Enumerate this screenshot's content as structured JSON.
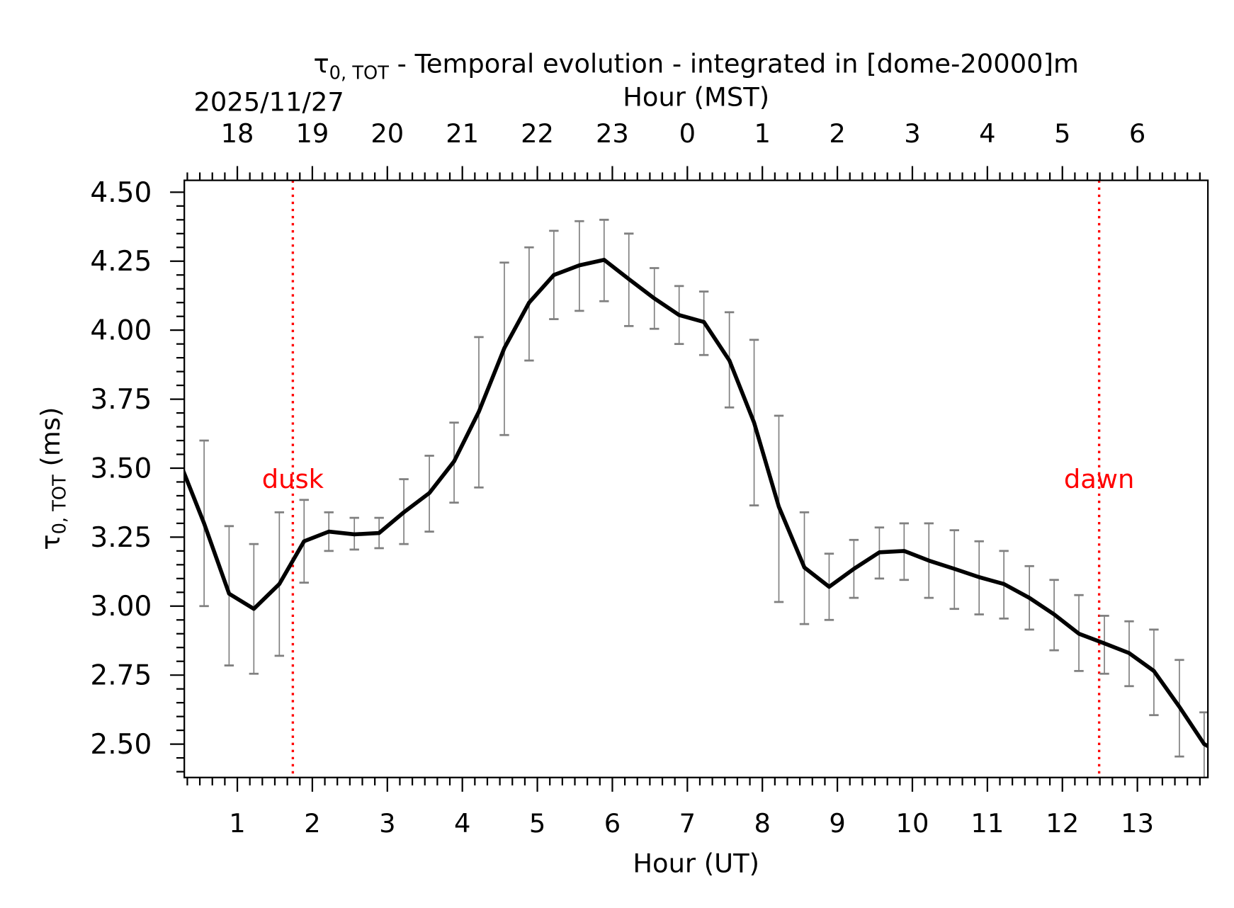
{
  "chart_data": {
    "type": "line",
    "title_symbol": "τ",
    "title_subscript": "0, TOT",
    "title_rest": " - Temporal evolution - integrated in [dome-20000]m",
    "date_label": "2025/11/27",
    "top_xlabel": "Hour (MST)",
    "xlabel": "Hour (UT)",
    "ylabel_symbol": "τ",
    "ylabel_subscript": "0, TOT",
    "ylabel_rest": " (ms)",
    "xlim": [
      0.293,
      13.94
    ],
    "ylim": [
      2.379,
      4.543
    ],
    "x_ticks": [
      1,
      2,
      3,
      4,
      5,
      6,
      7,
      8,
      9,
      10,
      11,
      12,
      13
    ],
    "x_tick_labels": [
      "1",
      "2",
      "3",
      "4",
      "5",
      "6",
      "7",
      "8",
      "9",
      "10",
      "11",
      "12",
      "13"
    ],
    "top_tick_labels": [
      "18",
      "19",
      "20",
      "21",
      "22",
      "23",
      "0",
      "1",
      "2",
      "3",
      "4",
      "5",
      "6"
    ],
    "y_ticks": [
      2.5,
      2.75,
      3.0,
      3.25,
      3.5,
      3.75,
      4.0,
      4.25,
      4.5
    ],
    "y_tick_labels": [
      "2.50",
      "2.75",
      "3.00",
      "3.25",
      "3.50",
      "3.75",
      "4.00",
      "4.25",
      "4.50"
    ],
    "markers": [
      {
        "label": "dusk",
        "x": 1.74,
        "color": "#ff0000"
      },
      {
        "label": "dawn",
        "x": 12.49,
        "color": "#ff0000"
      }
    ],
    "series": [
      {
        "name": "tau0_tot",
        "color": "#000000",
        "errorbar_color": "#808080",
        "x": [
          0.22,
          0.557,
          0.89,
          1.22,
          1.56,
          1.89,
          2.22,
          2.56,
          2.89,
          3.22,
          3.56,
          3.89,
          4.22,
          4.56,
          4.89,
          5.22,
          5.56,
          5.89,
          6.22,
          6.56,
          6.89,
          7.22,
          7.56,
          7.89,
          8.22,
          8.56,
          8.89,
          9.22,
          9.56,
          9.89,
          10.22,
          10.56,
          10.89,
          11.22,
          11.56,
          11.89,
          12.22,
          12.56,
          12.89,
          13.22,
          13.56,
          13.89,
          14.22
        ],
        "y": [
          3.53,
          3.3,
          3.045,
          2.99,
          3.08,
          3.235,
          3.27,
          3.26,
          3.265,
          3.34,
          3.41,
          3.525,
          3.705,
          3.935,
          4.1,
          4.2,
          4.235,
          4.255,
          4.185,
          4.115,
          4.055,
          4.03,
          3.89,
          3.665,
          3.36,
          3.14,
          3.07,
          3.135,
          3.195,
          3.2,
          3.165,
          3.135,
          3.105,
          3.08,
          3.03,
          2.97,
          2.9,
          2.865,
          2.83,
          2.765,
          2.635,
          2.5,
          2.45
        ],
        "err_high": [
          null,
          3.6,
          3.29,
          3.225,
          3.34,
          3.385,
          3.34,
          3.32,
          3.32,
          3.46,
          3.545,
          3.665,
          3.975,
          4.245,
          4.3,
          4.36,
          4.395,
          4.4,
          4.35,
          4.225,
          4.16,
          4.14,
          4.065,
          3.965,
          3.69,
          3.34,
          3.19,
          3.24,
          3.285,
          3.3,
          3.3,
          3.275,
          3.235,
          3.2,
          3.145,
          3.095,
          3.04,
          2.965,
          2.945,
          2.915,
          2.805,
          2.615,
          null
        ],
        "err_low": [
          null,
          3.0,
          2.785,
          2.755,
          2.82,
          3.085,
          3.2,
          3.205,
          3.21,
          3.225,
          3.27,
          3.375,
          3.43,
          3.62,
          3.89,
          4.04,
          4.07,
          4.105,
          4.015,
          4.005,
          3.95,
          3.91,
          3.72,
          3.365,
          3.015,
          2.935,
          2.95,
          3.03,
          3.1,
          3.095,
          3.03,
          2.99,
          2.97,
          2.955,
          2.915,
          2.84,
          2.765,
          2.755,
          2.71,
          2.605,
          2.455,
          2.375,
          null
        ]
      }
    ]
  }
}
